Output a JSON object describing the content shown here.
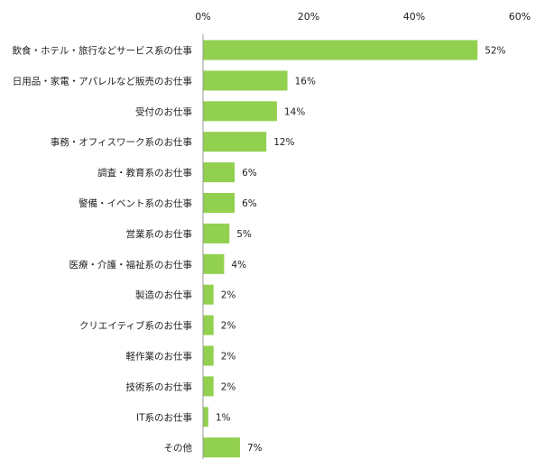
{
  "chart_data": {
    "type": "bar",
    "orientation": "horizontal",
    "categories": [
      "飲食・ホテル・旅行などサービス系の仕事",
      "日用品・家電・アパレルなど販売のお仕事",
      "受付のお仕事",
      "事務・オフィスワーク系のお仕事",
      "調査・教育系のお仕事",
      "警備・イベント系のお仕事",
      "営業系のお仕事",
      "医療・介護・福祉系のお仕事",
      "製造のお仕事",
      "クリエイティブ系のお仕事",
      "軽作業のお仕事",
      "技術系のお仕事",
      "IT系のお仕事",
      "その他"
    ],
    "values": [
      52,
      16,
      14,
      12,
      6,
      6,
      5,
      4,
      2,
      2,
      2,
      2,
      1,
      7
    ],
    "value_labels": [
      "52%",
      "16%",
      "14%",
      "12%",
      "6%",
      "6%",
      "5%",
      "4%",
      "2%",
      "2%",
      "2%",
      "2%",
      "1%",
      "7%"
    ],
    "xlim": [
      0,
      60
    ],
    "xticks": [
      0,
      20,
      40,
      60
    ],
    "xtick_labels": [
      "0%",
      "20%",
      "40%",
      "60%"
    ],
    "axis_position": "top",
    "grid": false,
    "bar_color": "#92d050",
    "title": "",
    "xlabel": "",
    "ylabel": ""
  }
}
